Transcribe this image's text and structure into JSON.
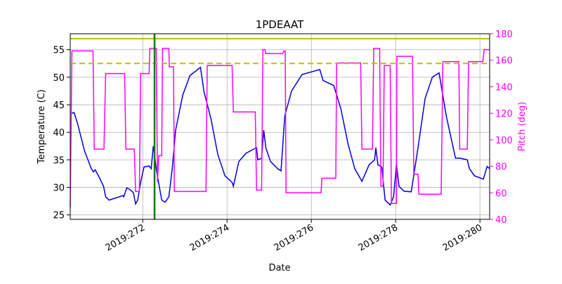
{
  "chart_data": {
    "type": "line",
    "title": "1PDEAAT",
    "x_label": "Date",
    "y_label": "Temperature (C)",
    "y2_label": "Pitch (deg)",
    "xlim": [
      270.28,
      280.23
    ],
    "xticks": [
      {
        "value": 272,
        "label": "2019:272"
      },
      {
        "value": 274,
        "label": "2019:274"
      },
      {
        "value": 276,
        "label": "2019:276"
      },
      {
        "value": 278,
        "label": "2019:278"
      },
      {
        "value": 280,
        "label": "2019:280"
      }
    ],
    "ylim": [
      24.2,
      57.9
    ],
    "yticks": [
      25,
      30,
      35,
      40,
      45,
      50,
      55
    ],
    "y2lim": [
      40,
      180
    ],
    "y2ticks": [
      40,
      60,
      80,
      100,
      120,
      140,
      160,
      180
    ],
    "y2_color": "#ff00ff",
    "grid": true,
    "series": [
      {
        "name": "Temperature",
        "color": "#0000dd",
        "axis": "y",
        "x": [
          270.3,
          270.37,
          270.45,
          270.62,
          270.78,
          270.83,
          270.87,
          270.95,
          271.07,
          271.12,
          271.2,
          271.37,
          271.53,
          271.55,
          271.62,
          271.7,
          271.78,
          271.83,
          271.88,
          271.95,
          272.03,
          272.15,
          272.2,
          272.25,
          272.32,
          272.37,
          272.45,
          272.53,
          272.62,
          272.7,
          272.78,
          272.95,
          273.12,
          273.37,
          273.45,
          273.62,
          273.78,
          273.95,
          274.12,
          274.15,
          274.28,
          274.45,
          274.62,
          274.7,
          274.73,
          274.82,
          274.87,
          274.92,
          275.03,
          275.2,
          275.28,
          275.37,
          275.53,
          275.78,
          276.2,
          276.28,
          276.53,
          276.7,
          276.87,
          277.03,
          277.2,
          277.37,
          277.5,
          277.53,
          277.58,
          277.67,
          277.75,
          277.87,
          277.95,
          278.02,
          278.08,
          278.2,
          278.37,
          278.53,
          278.7,
          278.87,
          279.03,
          279.2,
          279.42,
          279.53,
          279.7,
          279.75,
          279.87,
          280.08,
          280.17,
          280.23
        ],
        "values": [
          43.4,
          43.6,
          41.7,
          36.6,
          33.4,
          32.8,
          33.2,
          32.1,
          30.2,
          28.3,
          27.7,
          28.1,
          28.5,
          28.3,
          29.9,
          29.6,
          29.0,
          27.0,
          27.7,
          30.9,
          33.7,
          33.9,
          33.4,
          37.5,
          33.4,
          31.1,
          27.7,
          27.3,
          28.3,
          33.4,
          40.4,
          46.8,
          50.3,
          51.8,
          47.5,
          42.4,
          36.0,
          32.1,
          30.9,
          30.2,
          34.7,
          36.2,
          36.9,
          37.2,
          35.0,
          35.3,
          40.4,
          37.2,
          34.7,
          33.4,
          33.0,
          43.0,
          47.5,
          50.5,
          51.4,
          49.4,
          48.5,
          44.3,
          37.9,
          33.4,
          31.1,
          34.1,
          35.0,
          37.2,
          34.1,
          33.7,
          27.7,
          26.8,
          28.3,
          34.1,
          30.2,
          29.3,
          29.2,
          37.2,
          46.2,
          50.0,
          50.8,
          43.0,
          35.3,
          35.3,
          35.0,
          33.4,
          32.1,
          31.5,
          33.8,
          33.4
        ]
      },
      {
        "name": "Pitch",
        "color": "#ff00ff",
        "axis": "y2",
        "x": [
          270.28,
          270.32,
          270.82,
          270.85,
          271.08,
          271.12,
          271.57,
          271.6,
          271.8,
          271.83,
          271.92,
          271.95,
          272.15,
          272.17,
          272.32,
          272.35,
          272.38,
          272.45,
          272.47,
          272.62,
          272.63,
          272.73,
          272.75,
          273.5,
          273.53,
          274.12,
          274.15,
          274.67,
          274.7,
          274.82,
          274.85,
          274.9,
          274.92,
          275.32,
          275.35,
          275.38,
          275.4,
          276.23,
          276.25,
          276.58,
          276.6,
          277.17,
          277.2,
          277.45,
          277.48,
          277.62,
          277.65,
          277.7,
          277.73,
          277.87,
          277.9,
          278.02,
          278.03,
          278.4,
          278.43,
          278.53,
          278.55,
          279.08,
          279.12,
          279.5,
          279.52,
          279.7,
          279.73,
          280.07,
          280.1,
          280.23
        ],
        "values": [
          49,
          167,
          167,
          93,
          93,
          150,
          150,
          93,
          93,
          61,
          61,
          150,
          150,
          169,
          169,
          68,
          88,
          88,
          169,
          169,
          155,
          155,
          61,
          61,
          156,
          156,
          121,
          121,
          62,
          62,
          168,
          168,
          165,
          165,
          167,
          167,
          60,
          60,
          71,
          71,
          158,
          158,
          93,
          93,
          169,
          169,
          65,
          65,
          156,
          156,
          52,
          52,
          163,
          163,
          74,
          74,
          59,
          59,
          159,
          159,
          93,
          93,
          159,
          159,
          168,
          168
        ]
      }
    ],
    "hlines": [
      {
        "y": 57,
        "color": "#bfbf00",
        "style": "solid"
      },
      {
        "y": 52.5,
        "color": "#bfbf00",
        "style": "dashed"
      }
    ],
    "vlines": [
      {
        "x": 272.28,
        "color": "#008000"
      }
    ]
  }
}
